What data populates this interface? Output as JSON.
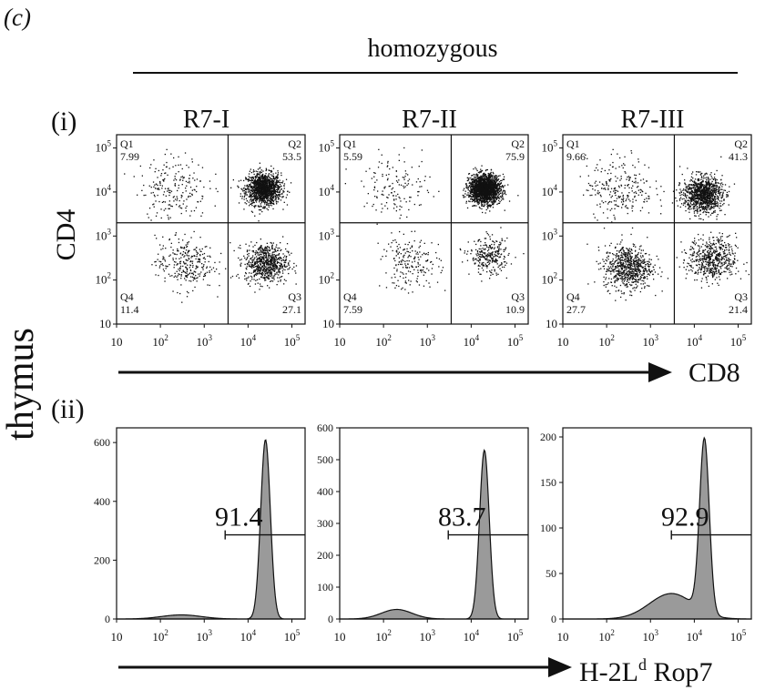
{
  "panel_letter": "(c)",
  "header": {
    "genotype": "homozygous",
    "tissue": "thymus"
  },
  "rows": {
    "row1_label": "(i)",
    "row2_label": "(ii)"
  },
  "arrows": {
    "row1_axis": "CD8",
    "row2_axis_main": "H-2L",
    "row2_axis_sup": "d",
    "row2_axis_tail": " Rop7"
  },
  "dot_y_label": "CD4",
  "decade_ticks": [
    {
      "base": "10",
      "sup": ""
    },
    {
      "base": "10",
      "sup": "2"
    },
    {
      "base": "10",
      "sup": "3"
    },
    {
      "base": "10",
      "sup": "4"
    },
    {
      "base": "10",
      "sup": "5"
    }
  ],
  "chart_data": [
    {
      "type": "scatter",
      "title": "R7-I",
      "xlabel": "CD8",
      "ylabel": "CD4",
      "scale": "log",
      "xlim": [
        10,
        200000
      ],
      "ylim": [
        10,
        200000
      ],
      "gate": {
        "x": 3500,
        "y": 2000
      },
      "quadrants": [
        {
          "name": "Q1",
          "value": "7.99"
        },
        {
          "name": "Q2",
          "value": "53.5"
        },
        {
          "name": "Q3",
          "value": "27.1"
        },
        {
          "name": "Q4",
          "value": "11.4"
        }
      ],
      "populations": [
        {
          "x": 22000,
          "y": 12000,
          "spread": 0.18,
          "weight": 0.535
        },
        {
          "x": 25000,
          "y": 250,
          "spread": 0.22,
          "weight": 0.271
        },
        {
          "x": 350,
          "y": 250,
          "spread": 0.3,
          "weight": 0.114
        },
        {
          "x": 200,
          "y": 13000,
          "spread": 0.35,
          "weight": 0.08
        }
      ]
    },
    {
      "type": "scatter",
      "title": "R7-II",
      "xlabel": "CD8",
      "ylabel": "CD4",
      "scale": "log",
      "xlim": [
        10,
        200000
      ],
      "ylim": [
        10,
        200000
      ],
      "gate": {
        "x": 3500,
        "y": 2000
      },
      "quadrants": [
        {
          "name": "Q1",
          "value": "5.59"
        },
        {
          "name": "Q2",
          "value": "75.9"
        },
        {
          "name": "Q3",
          "value": "10.9"
        },
        {
          "name": "Q4",
          "value": "7.59"
        }
      ],
      "populations": [
        {
          "x": 20000,
          "y": 12000,
          "spread": 0.16,
          "weight": 0.759
        },
        {
          "x": 25000,
          "y": 350,
          "spread": 0.2,
          "weight": 0.109
        },
        {
          "x": 400,
          "y": 250,
          "spread": 0.3,
          "weight": 0.076
        },
        {
          "x": 200,
          "y": 13000,
          "spread": 0.35,
          "weight": 0.056
        }
      ]
    },
    {
      "type": "scatter",
      "title": "R7-III",
      "xlabel": "CD8",
      "ylabel": "CD4",
      "scale": "log",
      "xlim": [
        10,
        200000
      ],
      "ylim": [
        10,
        200000
      ],
      "gate": {
        "x": 3500,
        "y": 2000
      },
      "quadrants": [
        {
          "name": "Q1",
          "value": "9.66"
        },
        {
          "name": "Q2",
          "value": "41.3"
        },
        {
          "name": "Q3",
          "value": "21.4"
        },
        {
          "name": "Q4",
          "value": "27.7"
        }
      ],
      "populations": [
        {
          "x": 15000,
          "y": 9000,
          "spread": 0.2,
          "weight": 0.413
        },
        {
          "x": 25000,
          "y": 300,
          "spread": 0.25,
          "weight": 0.214
        },
        {
          "x": 300,
          "y": 200,
          "spread": 0.25,
          "weight": 0.277
        },
        {
          "x": 200,
          "y": 13000,
          "spread": 0.35,
          "weight": 0.096
        }
      ]
    },
    {
      "type": "area",
      "title": "R7-I",
      "xlabel": "H-2Ld Rop7",
      "scale": "log",
      "xlim": [
        10,
        200000
      ],
      "ylim": [
        0,
        650
      ],
      "yticks": [
        0,
        200,
        400,
        600
      ],
      "gate_start": 3000,
      "gate_value": "91.4",
      "peaks": [
        {
          "x": 25000,
          "height": 610,
          "width": 0.11
        },
        {
          "x": 300,
          "height": 14,
          "width": 0.45
        }
      ]
    },
    {
      "type": "area",
      "title": "R7-II",
      "xlabel": "H-2Ld Rop7",
      "scale": "log",
      "xlim": [
        10,
        200000
      ],
      "ylim": [
        0,
        600
      ],
      "yticks": [
        0,
        100,
        200,
        300,
        400,
        500,
        600
      ],
      "gate_start": 3000,
      "gate_value": "83.7",
      "peaks": [
        {
          "x": 20000,
          "height": 530,
          "width": 0.11
        },
        {
          "x": 200,
          "height": 30,
          "width": 0.35
        }
      ]
    },
    {
      "type": "area",
      "title": "R7-III",
      "xlabel": "H-2Ld Rop7",
      "scale": "log",
      "xlim": [
        10,
        200000
      ],
      "ylim": [
        0,
        210
      ],
      "yticks": [
        0,
        50,
        100,
        150,
        200
      ],
      "gate_start": 3000,
      "gate_value": "92.9",
      "peaks": [
        {
          "x": 17000,
          "height": 190,
          "width": 0.11
        },
        {
          "x": 3000,
          "height": 28,
          "width": 0.5
        }
      ]
    }
  ]
}
